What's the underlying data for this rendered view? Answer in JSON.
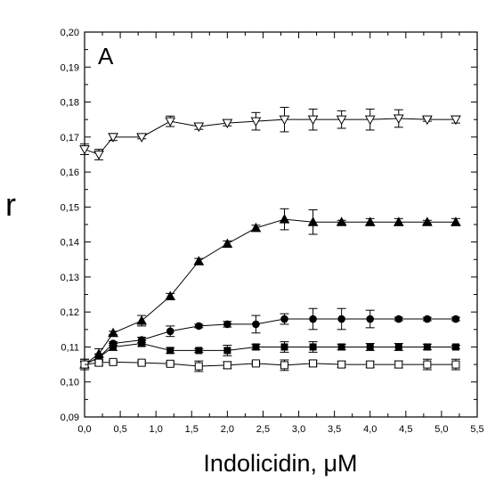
{
  "chart_data": {
    "type": "line",
    "title": "",
    "panel_label": "A",
    "xlabel": "Indolicidin, μM",
    "ylabel": "r",
    "xlim": [
      0,
      5.5
    ],
    "ylim": [
      0.09,
      0.2
    ],
    "x_ticks": [
      "0,0",
      "0,5",
      "1,0",
      "1,5",
      "2,0",
      "2,5",
      "3,0",
      "3,5",
      "4,0",
      "4,5",
      "5,0",
      "5,5"
    ],
    "y_ticks": [
      "0,09",
      "0,10",
      "0,11",
      "0,12",
      "0,13",
      "0,14",
      "0,15",
      "0,16",
      "0,17",
      "0,18",
      "0,19",
      "0,20"
    ],
    "grid": false,
    "series": [
      {
        "marker": "triangle-down-open",
        "x": [
          0.0,
          0.2,
          0.4,
          0.8,
          1.2,
          1.6,
          2.0,
          2.4,
          2.8,
          3.2,
          3.6,
          4.0,
          4.4,
          4.8,
          5.2
        ],
        "y": [
          0.1665,
          0.165,
          0.17,
          0.17,
          0.1745,
          0.173,
          0.174,
          0.1745,
          0.175,
          0.175,
          0.175,
          0.175,
          0.1753,
          0.175,
          0.175
        ],
        "err": [
          0.0015,
          0.0015,
          0.001,
          0.0005,
          0.0015,
          0.0008,
          0.0008,
          0.0025,
          0.0035,
          0.003,
          0.0025,
          0.003,
          0.0025,
          0.0005,
          0.001
        ]
      },
      {
        "marker": "triangle-up-filled",
        "x": [
          0.0,
          0.2,
          0.4,
          0.8,
          1.2,
          1.6,
          2.0,
          2.4,
          2.8,
          3.2,
          3.6,
          4.0,
          4.4,
          4.8,
          5.2
        ],
        "y": [
          0.105,
          0.108,
          0.114,
          0.1175,
          0.1245,
          0.1345,
          0.1395,
          0.144,
          0.1465,
          0.1457,
          0.1457,
          0.1457,
          0.1457,
          0.1457,
          0.1457
        ],
        "err": [
          0.0015,
          0.0015,
          0.0005,
          0.0015,
          0.0008,
          0.0008,
          0.0008,
          0.0008,
          0.003,
          0.0035,
          0.0005,
          0.001,
          0.001,
          0.0005,
          0.001
        ]
      },
      {
        "marker": "circle-filled",
        "x": [
          0.0,
          0.2,
          0.4,
          0.8,
          1.2,
          1.6,
          2.0,
          2.4,
          2.8,
          3.2,
          3.6,
          4.0,
          4.4,
          4.8,
          5.2
        ],
        "y": [
          0.105,
          0.107,
          0.111,
          0.112,
          0.1145,
          0.116,
          0.1165,
          0.1165,
          0.118,
          0.118,
          0.118,
          0.118,
          0.118,
          0.118,
          0.118
        ],
        "err": [
          0.001,
          0.001,
          0.0005,
          0.0008,
          0.0015,
          0.0005,
          0.0008,
          0.0025,
          0.0015,
          0.003,
          0.003,
          0.0025,
          0.0005,
          0.0005,
          0.0005
        ]
      },
      {
        "marker": "square-filled",
        "x": [
          0.0,
          0.2,
          0.4,
          0.8,
          1.2,
          1.6,
          2.0,
          2.4,
          2.8,
          3.2,
          3.6,
          4.0,
          4.4,
          4.8,
          5.2
        ],
        "y": [
          0.105,
          0.107,
          0.11,
          0.111,
          0.109,
          0.109,
          0.109,
          0.11,
          0.11,
          0.11,
          0.11,
          0.11,
          0.11,
          0.11,
          0.11
        ],
        "err": [
          0.0015,
          0.001,
          0.001,
          0.0008,
          0.0008,
          0.0005,
          0.0015,
          0.0008,
          0.0015,
          0.0015,
          0.0008,
          0.001,
          0.001,
          0.0008,
          0.0005
        ]
      },
      {
        "marker": "square-open",
        "x": [
          0.0,
          0.2,
          0.4,
          0.8,
          1.2,
          1.6,
          2.0,
          2.4,
          2.8,
          3.2,
          3.6,
          4.0,
          4.4,
          4.8,
          5.2
        ],
        "y": [
          0.105,
          0.1055,
          0.1057,
          0.1055,
          0.1052,
          0.1045,
          0.1048,
          0.1053,
          0.1048,
          0.1053,
          0.105,
          0.105,
          0.105,
          0.105,
          0.105
        ],
        "err": [
          0.0008,
          0.0008,
          0.0005,
          0.0005,
          0.0005,
          0.0015,
          0.001,
          0.0005,
          0.0015,
          0.0008,
          0.0008,
          0.0008,
          0.001,
          0.0015,
          0.0015
        ]
      }
    ]
  }
}
